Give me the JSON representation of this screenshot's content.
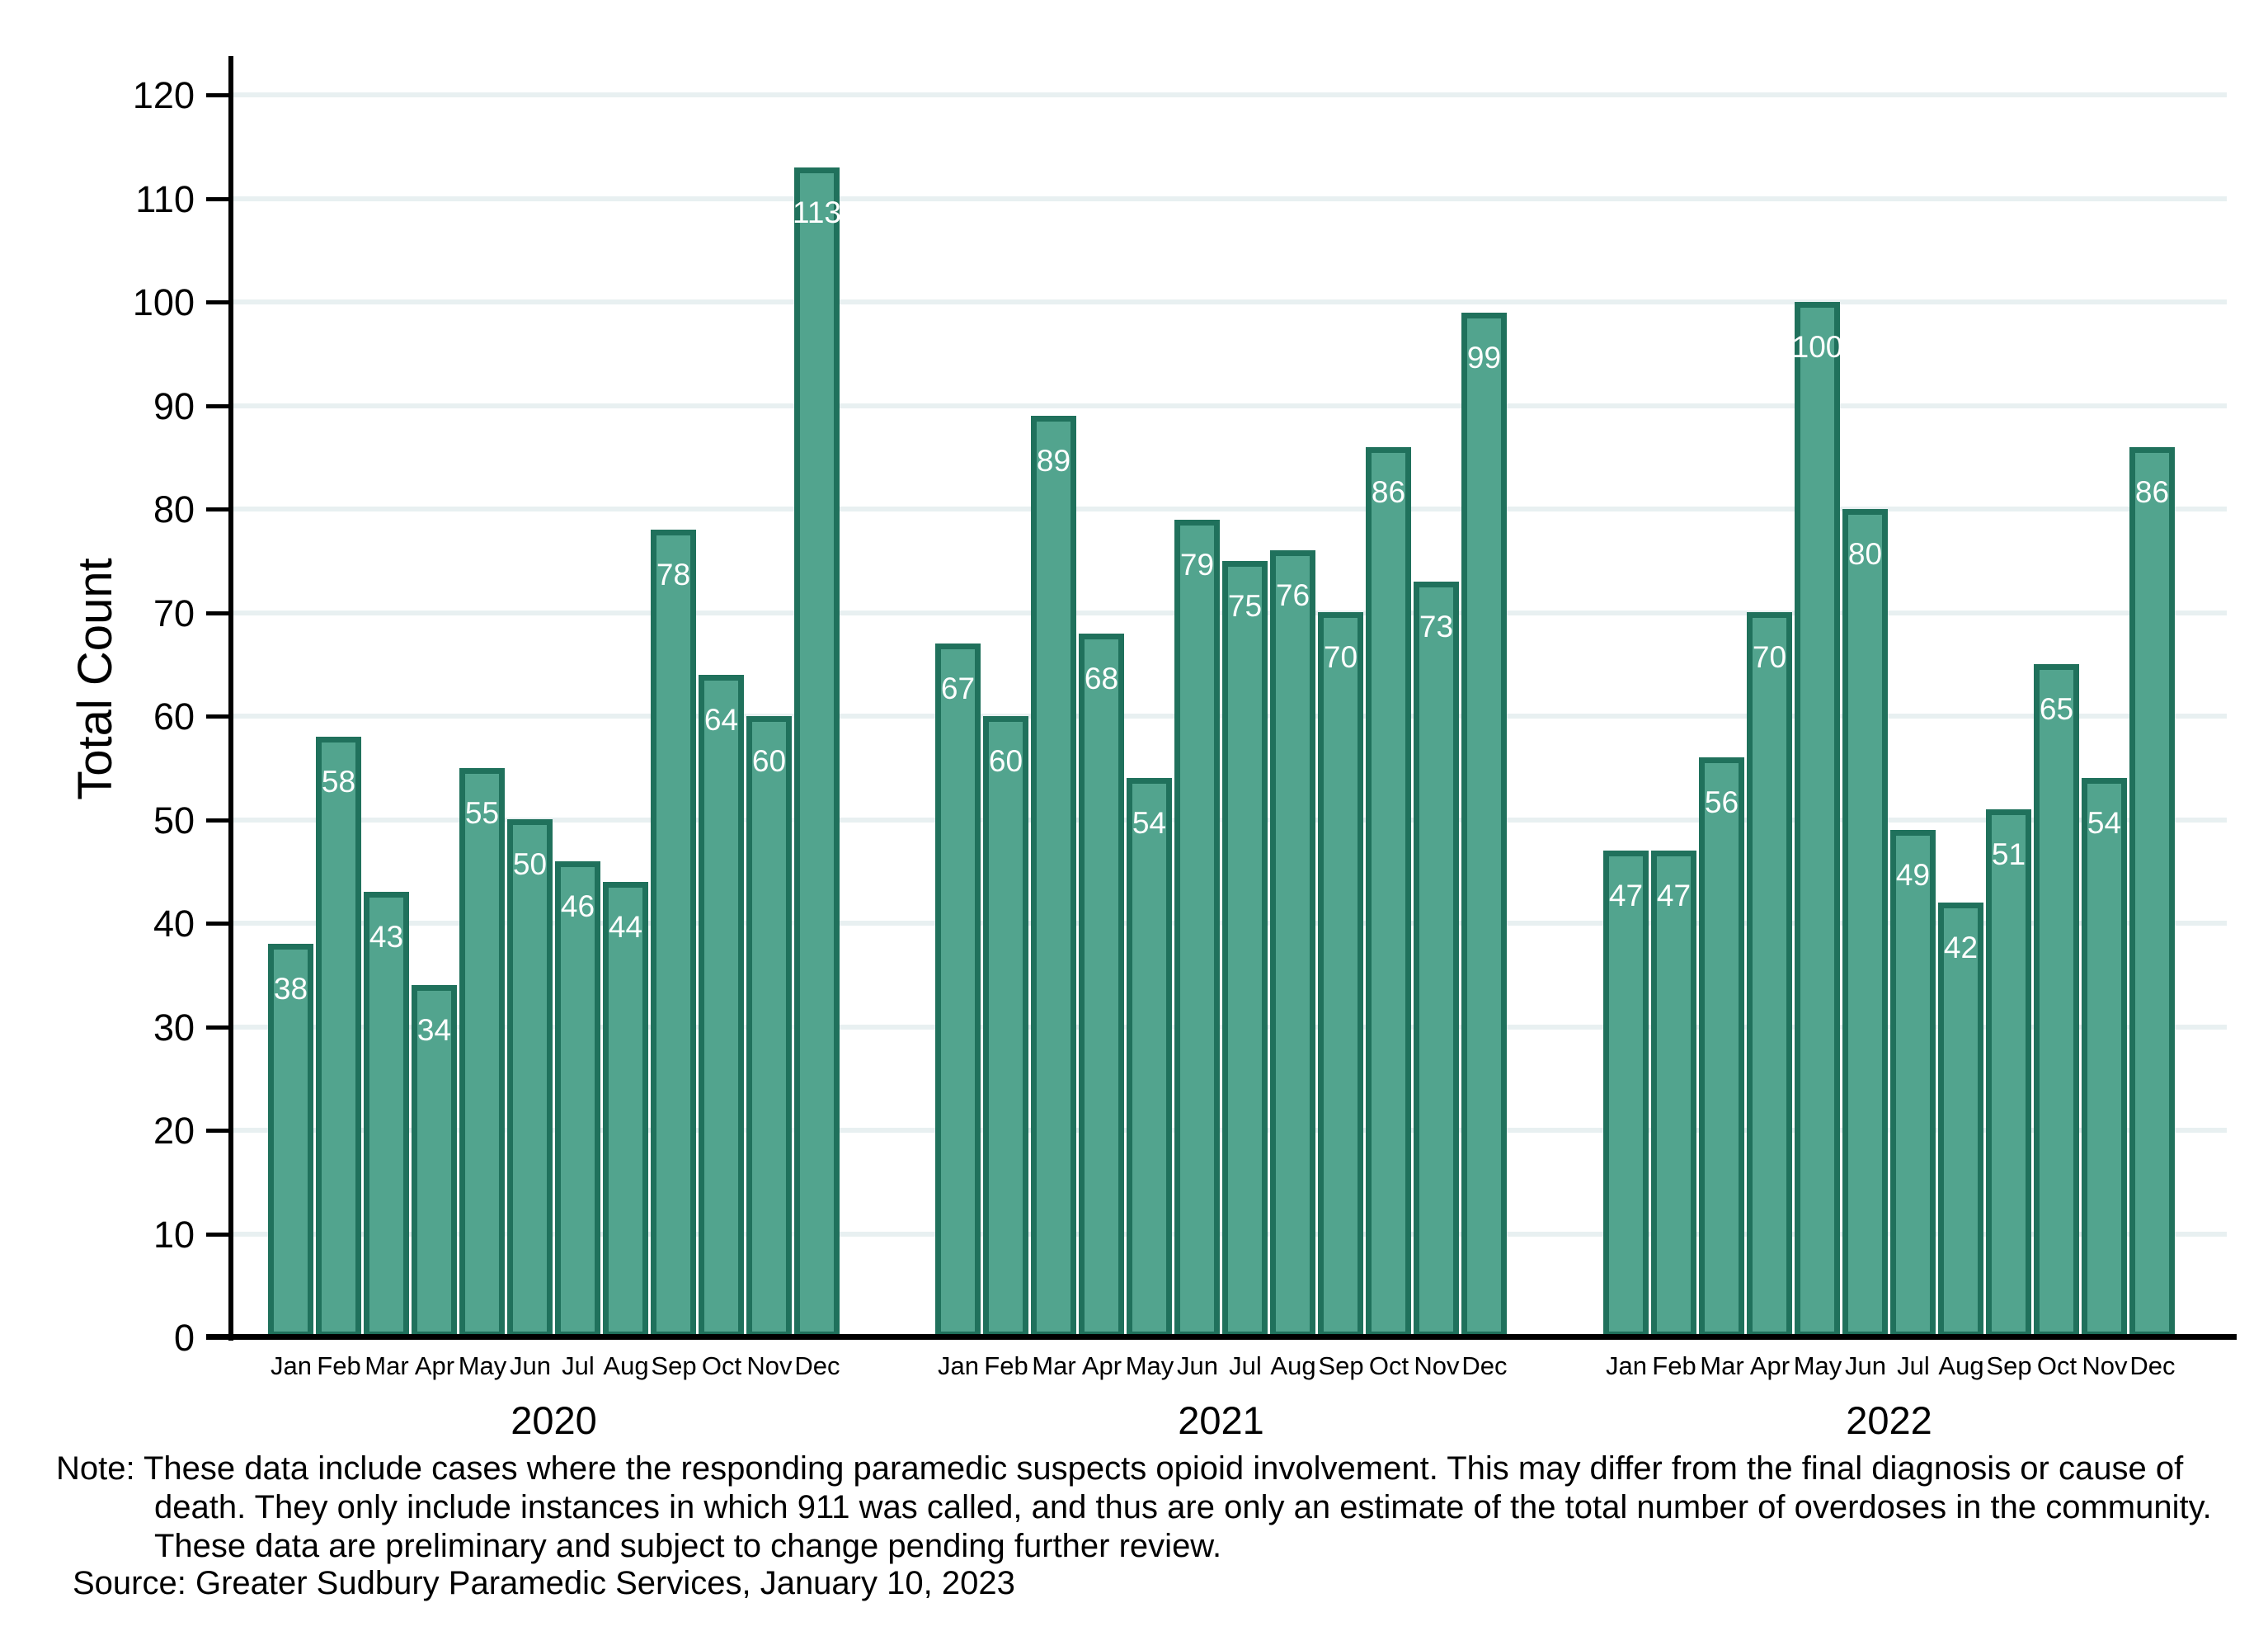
{
  "chart_data": {
    "type": "bar",
    "title": "",
    "ylabel": "Total Count",
    "xlabel": "",
    "ylim": [
      0,
      120
    ],
    "yticks": [
      0,
      10,
      20,
      30,
      40,
      50,
      60,
      70,
      80,
      90,
      100,
      110,
      120
    ],
    "grid": true,
    "legend": "none",
    "colors": {
      "bar_fill": "#52a48e",
      "bar_border": "#20715c",
      "bar_value_label": "#ffffff",
      "gridline": "#e8f0f1",
      "axis": "#000000"
    },
    "months": [
      "Jan",
      "Feb",
      "Mar",
      "Apr",
      "May",
      "Jun",
      "Jul",
      "Aug",
      "Sep",
      "Oct",
      "Nov",
      "Dec"
    ],
    "series": [
      {
        "year": "2020",
        "values": [
          38,
          58,
          43,
          34,
          55,
          50,
          46,
          44,
          78,
          64,
          60,
          113
        ]
      },
      {
        "year": "2021",
        "values": [
          67,
          60,
          89,
          68,
          54,
          79,
          75,
          76,
          70,
          86,
          73,
          99
        ]
      },
      {
        "year": "2022",
        "values": [
          47,
          47,
          56,
          70,
          100,
          80,
          49,
          42,
          51,
          65,
          54,
          86
        ]
      }
    ]
  },
  "footnotes": {
    "note_lines": [
      "Note: These data include cases where the responding paramedic suspects opioid involvement. This may differ from the final diagnosis or cause of",
      "death. They only include instances in which 911 was called, and thus are only an estimate of the total number of overdoses in the community.",
      "These data are preliminary and subject to change pending further review."
    ],
    "source": "Source: Greater Sudbury Paramedic Services, January 10, 2023"
  }
}
